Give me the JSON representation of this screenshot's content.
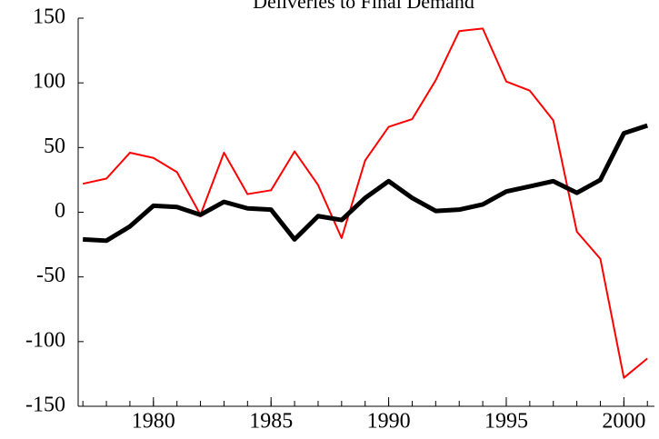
{
  "chart_data": {
    "type": "line",
    "title": "Deliveries to Final Demand",
    "x": [
      1977,
      1978,
      1979,
      1980,
      1981,
      1982,
      1983,
      1984,
      1985,
      1986,
      1987,
      1988,
      1989,
      1990,
      1991,
      1992,
      1993,
      1994,
      1995,
      1996,
      1997,
      1998,
      1999,
      2000,
      2001
    ],
    "series": [
      {
        "color": "#ff0000",
        "values": [
          22,
          26,
          46,
          42,
          31,
          -2,
          46,
          14,
          17,
          47,
          21,
          -20,
          40,
          66,
          72,
          102,
          140,
          142,
          101,
          94,
          71,
          -15,
          -36,
          -128,
          -113
        ]
      },
      {
        "color": "#000000",
        "values": [
          -21,
          -22,
          -11,
          5,
          4,
          -2,
          8,
          3,
          2,
          -21,
          -3,
          -6,
          11,
          24,
          11,
          1,
          2,
          6,
          16,
          20,
          24,
          15,
          25,
          61,
          67
        ]
      }
    ],
    "xlim": [
      1976.8,
      2001.3
    ],
    "xticks": [
      1980,
      1985,
      1990,
      1995,
      2000
    ],
    "ylim": [
      -150,
      150
    ],
    "yticks": [
      -150,
      -100,
      -50,
      0,
      50,
      100,
      150
    ]
  }
}
